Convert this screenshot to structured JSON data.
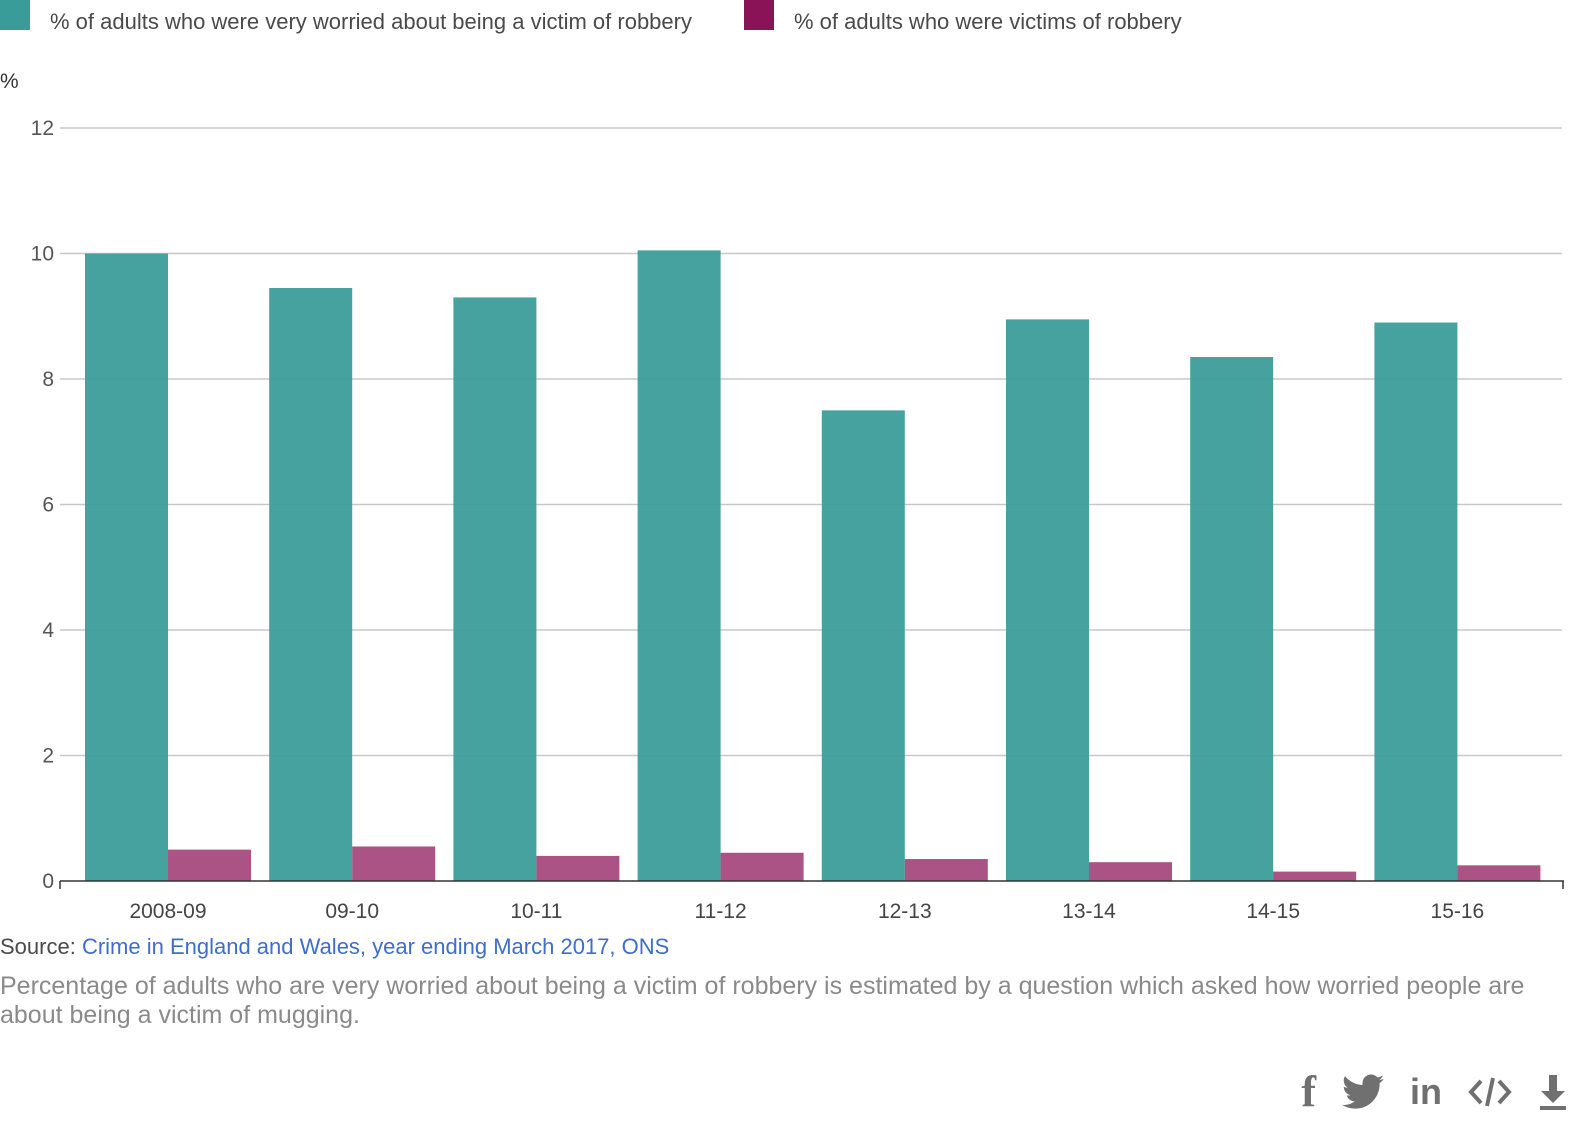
{
  "legend": [
    {
      "label": "% of adults who were very worried about being a victim of robbery",
      "color": "#3a9c99"
    },
    {
      "label": "% of adults who were victims of robbery",
      "color": "#8a1357"
    }
  ],
  "chart_data": {
    "type": "bar",
    "ylabel": "%",
    "ylim": [
      0,
      12
    ],
    "yticks": [
      "0",
      "2",
      "4",
      "6",
      "8",
      "10",
      "12"
    ],
    "grid": true,
    "legend_position": "top-left",
    "categories": [
      "2008-09",
      "09-10",
      "10-11",
      "11-12",
      "12-13",
      "13-14",
      "14-15",
      "15-16"
    ],
    "series": [
      {
        "name": "% of adults who were very worried about being a victim of robbery",
        "color": "#3a9c99",
        "values": [
          10.0,
          9.45,
          9.3,
          10.05,
          7.5,
          8.95,
          8.35,
          8.9
        ]
      },
      {
        "name": "% of adults who were victims of robbery",
        "color": "#8a1357",
        "values": [
          0.5,
          0.55,
          0.4,
          0.45,
          0.35,
          0.3,
          0.15,
          0.25
        ]
      }
    ]
  },
  "footer": {
    "source_prefix": "Source: ",
    "source_link": "Crime in England and Wales, year ending March 2017, ONS",
    "note": "Percentage of adults who are very worried about being a victim of robbery is estimated by a question which asked how worried people are about being a victim of mugging."
  },
  "share": {
    "icons": [
      "facebook-icon",
      "twitter-icon",
      "linkedin-icon",
      "embed-icon",
      "download-icon"
    ],
    "facebook_glyph": "f",
    "linkedin_glyph": "in"
  }
}
